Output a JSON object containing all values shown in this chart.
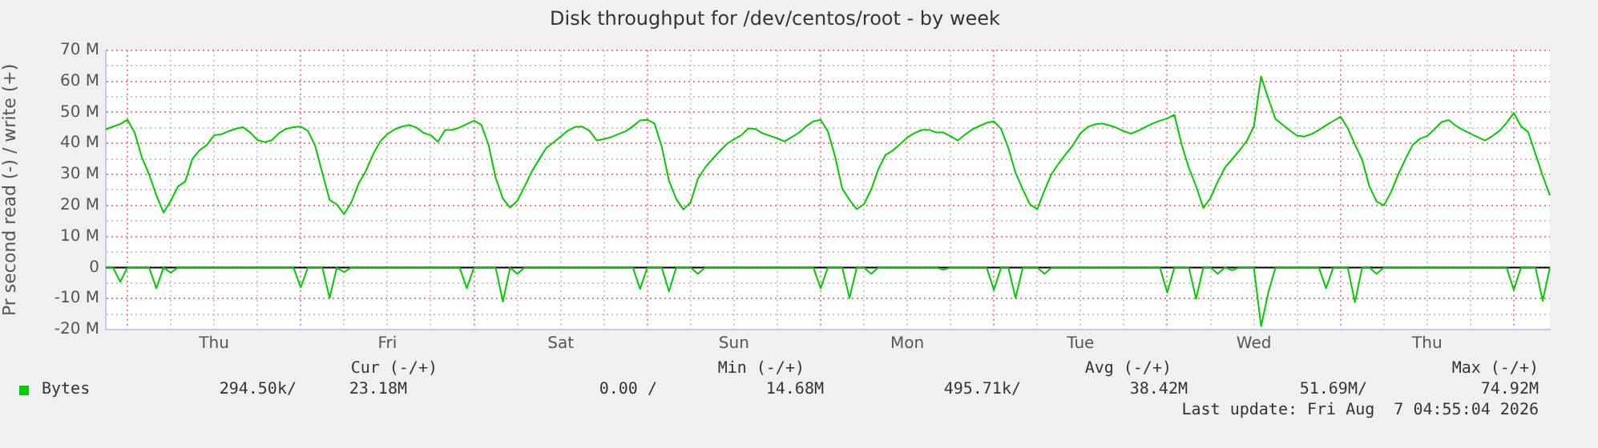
{
  "chart_data": {
    "type": "line",
    "title": "Disk throughput for /dev/centos/root - by week",
    "ylabel": "Pr second read (-) / write (+)",
    "categories": [
      null,
      null,
      null,
      null,
      null,
      null,
      null,
      null,
      null,
      null,
      null,
      null,
      null,
      null,
      null,
      "Thu",
      null,
      null,
      null,
      null,
      null,
      null,
      null,
      null,
      null,
      null,
      null,
      null,
      null,
      null,
      null,
      null,
      null,
      null,
      null,
      null,
      null,
      null,
      null,
      "Fri",
      null,
      null,
      null,
      null,
      null,
      null,
      null,
      null,
      null,
      null,
      null,
      null,
      null,
      null,
      null,
      null,
      null,
      null,
      null,
      null,
      null,
      null,
      null,
      "Sat",
      null,
      null,
      null,
      null,
      null,
      null,
      null,
      null,
      null,
      null,
      null,
      null,
      null,
      null,
      null,
      null,
      null,
      null,
      null,
      null,
      null,
      null,
      null,
      "Sun",
      null,
      null,
      null,
      null,
      null,
      null,
      null,
      null,
      null,
      null,
      null,
      null,
      null,
      null,
      null,
      null,
      null,
      null,
      null,
      null,
      null,
      null,
      null,
      "Mon",
      null,
      null,
      null,
      null,
      null,
      null,
      null,
      null,
      null,
      null,
      null,
      null,
      null,
      null,
      null,
      null,
      null,
      null,
      null,
      null,
      null,
      null,
      null,
      "Tue",
      null,
      null,
      null,
      null,
      null,
      null,
      null,
      null,
      null,
      null,
      null,
      null,
      null,
      null,
      null,
      null,
      null,
      null,
      null,
      null,
      null,
      null,
      null,
      "Wed",
      null,
      null,
      null,
      null,
      null,
      null,
      null,
      null,
      null,
      null,
      null,
      null,
      null,
      null,
      null,
      null,
      null,
      null,
      null,
      null,
      null,
      null,
      null,
      "Thu",
      null,
      null,
      null,
      null,
      null,
      null,
      null,
      null,
      null,
      null,
      null,
      null,
      null,
      null,
      null,
      null,
      null
    ],
    "ylim": [
      -20,
      70
    ],
    "yticks": [
      {
        "value": -20,
        "label": "-20 M"
      },
      {
        "value": -15,
        "label": null
      },
      {
        "value": -10,
        "label": "-10 M"
      },
      {
        "value": -5,
        "label": null
      },
      0,
      {
        "value": 5,
        "label": null
      },
      {
        "value": 10,
        "label": "10 M"
      },
      {
        "value": 15,
        "label": null
      },
      {
        "value": 20,
        "label": "20 M"
      },
      {
        "value": 25,
        "label": null
      },
      {
        "value": 30,
        "label": "30 M"
      },
      {
        "value": 35,
        "label": null
      },
      {
        "value": 40,
        "label": "40 M"
      },
      {
        "value": 45,
        "label": null
      },
      {
        "value": 50,
        "label": "50 M"
      },
      {
        "value": 55,
        "label": null
      },
      {
        "value": 60,
        "label": "60 M"
      },
      {
        "value": 65,
        "label": null
      },
      {
        "value": 70,
        "label": "70 M"
      }
    ],
    "grid": true,
    "legend": "bottom left",
    "marker": "none",
    "line_style": "solid",
    "ref_lines": [
      {
        "axis": "y",
        "value": 0,
        "color": "#000000"
      }
    ],
    "series": [
      {
        "name": "Bytes",
        "color": "#00cc00",
        "values": [
          44.5,
          45.4,
          46.2,
          47.6,
          43.5,
          35.5,
          30,
          23.3,
          17.7,
          21.5,
          26.1,
          27.7,
          35,
          37.8,
          39.5,
          42.6,
          42.9,
          43.9,
          44.7,
          45.2,
          43.5,
          41.1,
          40.4,
          41,
          43.3,
          44.7,
          45.2,
          45.4,
          44,
          39.2,
          30.4,
          21.8,
          20.3,
          17.2,
          20.9,
          27,
          31,
          36.4,
          40.6,
          43,
          44.5,
          45.4,
          45.9,
          45.1,
          43.4,
          42.6,
          40.5,
          44.3,
          44.3,
          45.1,
          46.2,
          47.3,
          46,
          39.6,
          28.9,
          22.2,
          19.3,
          21.5,
          26.1,
          30.9,
          34.8,
          38.5,
          40.3,
          42.2,
          44.1,
          45.3,
          45.4,
          44,
          40.9,
          41.4,
          42,
          43,
          43.9,
          45.5,
          47.4,
          47.6,
          46.4,
          38.9,
          28,
          22.1,
          18.7,
          21,
          28.6,
          32.2,
          34.9,
          37.4,
          39.8,
          41.3,
          42.6,
          44.8,
          44.6,
          43.2,
          42.4,
          41.6,
          40.6,
          42,
          43.4,
          45.5,
          47.1,
          47.6,
          43.9,
          35.8,
          25.4,
          21.8,
          18.8,
          20.4,
          25.1,
          31.7,
          36.3,
          37.7,
          39.7,
          41.9,
          43.3,
          44.3,
          44.4,
          43.5,
          43.5,
          42.3,
          40.9,
          42.8,
          44.5,
          45.6,
          46.6,
          47.1,
          44.6,
          38.5,
          30.5,
          25.2,
          20.3,
          18.8,
          24.8,
          30.2,
          33.6,
          36.7,
          39.6,
          43.3,
          45.3,
          46.1,
          46.4,
          45.8,
          45,
          43.9,
          43.1,
          44.1,
          45.3,
          46.4,
          47.3,
          48,
          49.2,
          39.6,
          32.1,
          26.2,
          19.2,
          22.4,
          27.7,
          32.2,
          34.9,
          37.7,
          40.7,
          45.4,
          61.6,
          54.5,
          47.8,
          46,
          44.1,
          42.5,
          42.2,
          43,
          44.3,
          45.8,
          47.2,
          48.6,
          44.9,
          39.6,
          34.7,
          26.1,
          21.3,
          20,
          24.3,
          30,
          35,
          39.5,
          41.5,
          42.4,
          44.5,
          46.9,
          47.5,
          45.6,
          44.3,
          43.1,
          42,
          40.9,
          42.3,
          44,
          46.6,
          49.8,
          45.5,
          43.6,
          36.6,
          29.6,
          23.2
        ]
      },
      {
        "color": "#00cc00",
        "values": [
          0,
          0,
          -4.6,
          0,
          0,
          0,
          0,
          -6.7,
          0,
          -1.7,
          0,
          0,
          0,
          0,
          0,
          0,
          0,
          0,
          0,
          0,
          0,
          0,
          0,
          0,
          0,
          0,
          0,
          -6.4,
          0,
          0,
          0,
          -9.8,
          0,
          -1.5,
          0,
          0,
          0,
          0,
          0,
          0,
          0,
          0,
          0,
          0,
          0,
          0,
          0,
          0,
          0,
          0,
          -6.7,
          0,
          0,
          0,
          0,
          -11,
          0,
          -2,
          0,
          0,
          0,
          0,
          0,
          0,
          0,
          0,
          0,
          0,
          0,
          0,
          0,
          0,
          0,
          0,
          -6.9,
          0,
          0,
          0,
          -7.7,
          0,
          0,
          0,
          -2,
          0,
          0,
          0,
          0,
          0,
          0,
          0,
          0,
          0,
          0,
          0,
          0,
          0,
          0,
          0,
          0,
          -6.7,
          0,
          0,
          0,
          -9.8,
          0,
          0,
          -2,
          0,
          0,
          0,
          0,
          0,
          0,
          0,
          0,
          0,
          -0.7,
          0,
          0,
          0,
          0,
          0,
          0,
          -7.2,
          0,
          0,
          -9.8,
          0,
          0,
          0,
          -2,
          0,
          0,
          0,
          0,
          0,
          0,
          0,
          0,
          0,
          0,
          0,
          0,
          0,
          0,
          0,
          0,
          -8.1,
          0,
          0,
          0,
          -10.1,
          0,
          0,
          -2,
          0,
          -0.9,
          0,
          0,
          0,
          -18.9,
          -8.1,
          0,
          0,
          0,
          0,
          0,
          0,
          0,
          -6.7,
          0,
          0,
          0,
          -11.2,
          0,
          0,
          -2,
          0,
          0,
          0,
          0,
          0,
          0,
          0,
          0,
          0,
          0,
          0,
          0,
          0,
          0,
          0,
          0,
          0,
          0,
          -7.2,
          0,
          0,
          0,
          -10.7,
          0
        ]
      }
    ],
    "annotations": [
      "Cur (-/+)",
      "Min (-/+)",
      "Avg (-/+)",
      "Max (-/+)",
      "294.50k/",
      "23.18M",
      "0.00 /",
      "14.68M",
      "495.71k/",
      "38.42M",
      "51.69M/",
      "74.92M",
      "Last update: Fri Aug  7 04:55:04 2026"
    ]
  }
}
